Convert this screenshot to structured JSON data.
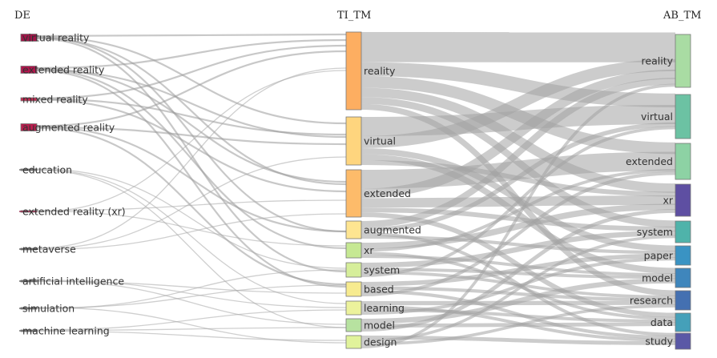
{
  "chart_data": {
    "type": "sankey",
    "columns": [
      {
        "title": "DE",
        "nodes": [
          {
            "label": "virtual reality",
            "value": 3,
            "color": "#a01548"
          },
          {
            "label": "extended reality",
            "value": 3,
            "color": "#b0164c"
          },
          {
            "label": "mixed reality",
            "value": 1.2,
            "color": "#c22b52"
          },
          {
            "label": "augmented reality",
            "value": 2.5,
            "color": "#b81e4e"
          },
          {
            "label": "education",
            "value": 0.6,
            "color": "#777777"
          },
          {
            "label": "extended reality (xr)",
            "value": 0.6,
            "color": "#9b3a58"
          },
          {
            "label": "metaverse",
            "value": 0.6,
            "color": "#666666"
          },
          {
            "label": "artificial intelligence",
            "value": 0.6,
            "color": "#6a6a6a"
          },
          {
            "label": "simulation",
            "value": 0.6,
            "color": "#6e6e6e"
          },
          {
            "label": "machine learning",
            "value": 0.6,
            "color": "#727272"
          }
        ]
      },
      {
        "title": "TI_TM",
        "nodes": [
          {
            "label": "reality",
            "value": 30,
            "color": "#fdae61"
          },
          {
            "label": "virtual",
            "value": 18,
            "color": "#fed57e"
          },
          {
            "label": "extended",
            "value": 18,
            "color": "#fdbb6a"
          },
          {
            "label": "augmented",
            "value": 6,
            "color": "#fee591"
          },
          {
            "label": "xr",
            "value": 5,
            "color": "#c6e893"
          },
          {
            "label": "system",
            "value": 5,
            "color": "#d6ee9a"
          },
          {
            "label": "based",
            "value": 5,
            "color": "#f7eb8f"
          },
          {
            "label": "learning",
            "value": 5,
            "color": "#ecf29c"
          },
          {
            "label": "model",
            "value": 4.5,
            "color": "#b7e2a0"
          },
          {
            "label": "design",
            "value": 4.5,
            "color": "#e1f39b"
          }
        ]
      },
      {
        "title": "AB_TM",
        "nodes": [
          {
            "label": "reality",
            "value": 20,
            "color": "#a9dca3"
          },
          {
            "label": "virtual",
            "value": 16,
            "color": "#6cc2a3"
          },
          {
            "label": "extended",
            "value": 13,
            "color": "#8dd2a4"
          },
          {
            "label": "xr",
            "value": 12,
            "color": "#5e4fa2"
          },
          {
            "label": "system",
            "value": 8,
            "color": "#4fb3aa"
          },
          {
            "label": "paper",
            "value": 7,
            "color": "#3a93c3"
          },
          {
            "label": "model",
            "value": 7,
            "color": "#3f86bc"
          },
          {
            "label": "research",
            "value": 7,
            "color": "#4470b1"
          },
          {
            "label": "data",
            "value": 6,
            "color": "#45a0b9"
          },
          {
            "label": "study",
            "value": 6,
            "color": "#5a58a6"
          }
        ]
      }
    ]
  }
}
